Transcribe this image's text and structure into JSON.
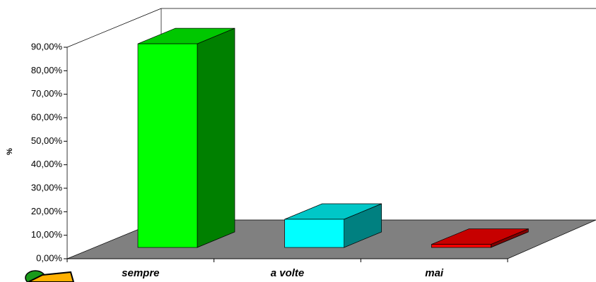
{
  "chart_data": {
    "type": "bar3d",
    "y_label": "%",
    "categories": [
      "sempre",
      "a volte",
      "mai"
    ],
    "values": [
      86.67,
      12,
      1.33
    ],
    "colors": [
      "#00ff00",
      "#00ffff",
      "#ff0000"
    ],
    "ylim": [
      0,
      90
    ],
    "yticks": [
      {
        "value": 0,
        "label": "0,00%"
      },
      {
        "value": 10,
        "label": "10,00%"
      },
      {
        "value": 20,
        "label": "20,00%"
      },
      {
        "value": 30,
        "label": "30,00%"
      },
      {
        "value": 40,
        "label": "40,00%"
      },
      {
        "value": 50,
        "label": "50,00%"
      },
      {
        "value": 60,
        "label": "60,00%"
      },
      {
        "value": 70,
        "label": "70,00%"
      },
      {
        "value": 80,
        "label": "80,00%"
      },
      {
        "value": 90,
        "label": "90,00%"
      }
    ]
  }
}
